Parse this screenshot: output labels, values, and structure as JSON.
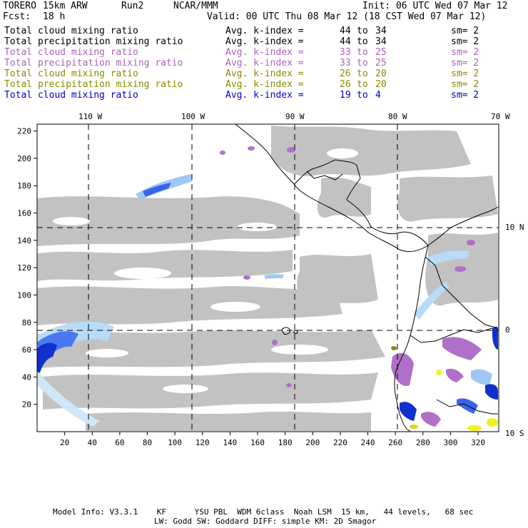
{
  "header": {
    "model": "TORERO",
    "resolution": "15km ARW",
    "run": "Run2",
    "org": "NCAR/MMM",
    "init": "Init: 06 UTC Wed 07 Mar 12",
    "fcst_label": "Fcst:",
    "fcst_value": "18 h",
    "valid": "Valid: 00 UTC Thu 08 Mar 12 (18 CST Wed 07 Mar 12)"
  },
  "legend_rows": [
    {
      "field": "Total cloud mixing ratio",
      "k": "Avg. k-index =",
      "from": "44",
      "to_label": "to",
      "to": "34",
      "sm": "sm= 2",
      "color": "#000000"
    },
    {
      "field": "Total precipitation mixing ratio",
      "k": "Avg. k-index =",
      "from": "44",
      "to_label": "to",
      "to": "34",
      "sm": "sm= 2",
      "color": "#000000"
    },
    {
      "field": "Total cloud mixing ratio",
      "k": "Avg. k-index =",
      "from": "33",
      "to_label": "to",
      "to": "25",
      "sm": "sm= 2",
      "color": "#b060c0"
    },
    {
      "field": "Total precipitation mixing ratio",
      "k": "Avg. k-index =",
      "from": "33",
      "to_label": "to",
      "to": "25",
      "sm": "sm= 2",
      "color": "#b060c0"
    },
    {
      "field": "Total cloud mixing ratio",
      "k": "Avg. k-index =",
      "from": "26",
      "to_label": "to",
      "to": "20",
      "sm": "sm= 2",
      "color": "#8a8a00"
    },
    {
      "field": "Total precipitation mixing ratio",
      "k": "Avg. k-index =",
      "from": "26",
      "to_label": "to",
      "to": "20",
      "sm": "sm= 2",
      "color": "#8a8a00"
    },
    {
      "field": "Total cloud mixing ratio",
      "k": "Avg. k-index =",
      "from": "19",
      "to_label": "to",
      "to": "4",
      "sm": "sm= 2",
      "color": "#0000cc"
    }
  ],
  "map": {
    "lon_labels": [
      "110 W",
      "100 W",
      "90 W",
      "80 W",
      "70 W"
    ],
    "lat_labels": [
      "10 N",
      "0",
      "10 S"
    ],
    "y_ticks": [
      "220",
      "200",
      "180",
      "160",
      "140",
      "120",
      "100",
      "80",
      "60",
      "40",
      "20"
    ],
    "x_ticks": [
      "20",
      "40",
      "60",
      "80",
      "100",
      "120",
      "140",
      "160",
      "180",
      "200",
      "220",
      "240",
      "260",
      "280",
      "300",
      "320"
    ]
  },
  "footer": {
    "line1": "Model Info: V3.3.1    KF      YSU PBL  WDM 6class  Noah LSM  15 km,   44 levels,   68 sec",
    "line2": "LW: Godd SW: Goddard DIFF: simple KM: 2D Smagor"
  }
}
